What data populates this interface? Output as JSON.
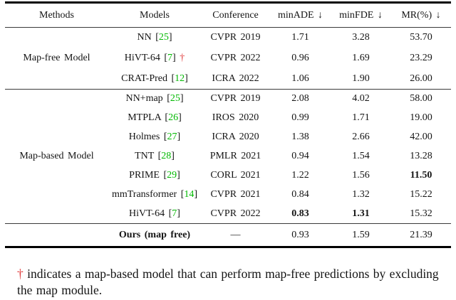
{
  "colors": {
    "citation_green": "#00b800",
    "dagger_red": "#e03a3a",
    "text": "#141414"
  },
  "table": {
    "header": {
      "methods": "Methods",
      "models": "Models",
      "conference": "Conference",
      "minade": "minADE ↓",
      "minfde": "minFDE ↓",
      "mr": "MR(%) ↓"
    },
    "groups": [
      {
        "label": "Map-free Model",
        "rows": [
          {
            "model": "NN",
            "cite": "25",
            "dagger": false,
            "conference": "CVPR 2019",
            "minade": "1.71",
            "minfde": "3.28",
            "mr": "53.70",
            "minade_bold": false,
            "minfde_bold": false,
            "mr_bold": false
          },
          {
            "model": "HiVT-64",
            "cite": "7",
            "dagger": true,
            "conference": "CVPR 2022",
            "minade": "0.96",
            "minfde": "1.69",
            "mr": "23.29",
            "minade_bold": false,
            "minfde_bold": false,
            "mr_bold": false
          },
          {
            "model": "CRAT-Pred",
            "cite": "12",
            "dagger": false,
            "conference": "ICRA 2022",
            "minade": "1.06",
            "minfde": "1.90",
            "mr": "26.00",
            "minade_bold": false,
            "minfde_bold": false,
            "mr_bold": false
          }
        ]
      },
      {
        "label": "Map-based Model",
        "rows": [
          {
            "model": "NN+map",
            "cite": "25",
            "dagger": false,
            "conference": "CVPR 2019",
            "minade": "2.08",
            "minfde": "4.02",
            "mr": "58.00",
            "minade_bold": false,
            "minfde_bold": false,
            "mr_bold": false
          },
          {
            "model": "MTPLA",
            "cite": "26",
            "dagger": false,
            "conference": "IROS 2020",
            "minade": "0.99",
            "minfde": "1.71",
            "mr": "19.00",
            "minade_bold": false,
            "minfde_bold": false,
            "mr_bold": false
          },
          {
            "model": "Holmes",
            "cite": "27",
            "dagger": false,
            "conference": "ICRA 2020",
            "minade": "1.38",
            "minfde": "2.66",
            "mr": "42.00",
            "minade_bold": false,
            "minfde_bold": false,
            "mr_bold": false
          },
          {
            "model": "TNT",
            "cite": "28",
            "dagger": false,
            "conference": "PMLR 2021",
            "minade": "0.94",
            "minfde": "1.54",
            "mr": "13.28",
            "minade_bold": false,
            "minfde_bold": false,
            "mr_bold": false
          },
          {
            "model": "PRIME",
            "cite": "29",
            "dagger": false,
            "conference": "CORL 2021",
            "minade": "1.22",
            "minfde": "1.56",
            "mr": "11.50",
            "minade_bold": false,
            "minfde_bold": false,
            "mr_bold": true
          },
          {
            "model": "mmTransformer",
            "cite": "14",
            "dagger": false,
            "conference": "CVPR 2021",
            "minade": "0.84",
            "minfde": "1.32",
            "mr": "15.22",
            "minade_bold": false,
            "minfde_bold": false,
            "mr_bold": false
          },
          {
            "model": "HiVT-64",
            "cite": "7",
            "dagger": false,
            "conference": "CVPR 2022",
            "minade": "0.83",
            "minfde": "1.31",
            "mr": "15.32",
            "minade_bold": true,
            "minfde_bold": true,
            "mr_bold": false
          }
        ]
      }
    ],
    "ours": {
      "label": "",
      "model": "Ours (map free)",
      "conference": "—",
      "minade": "0.93",
      "minfde": "1.59",
      "mr": "21.39"
    }
  },
  "footnote": {
    "dagger": "†",
    "text": "indicates a map-based model that can perform map-free predictions by excluding the map module."
  }
}
